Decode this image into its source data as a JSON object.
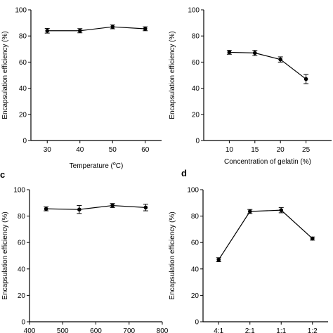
{
  "chart_data": [
    {
      "type": "line",
      "panel_label": "",
      "title": "",
      "xlabel": "Temperature (",
      "xlabel_unit": "C)",
      "xlabel_sup": "o",
      "ylabel": "Encapsulation efficiency (%)",
      "xlim": [
        25,
        65
      ],
      "ylim": [
        0,
        100
      ],
      "xticks": [
        30,
        40,
        50,
        60
      ],
      "yticks": [
        0,
        20,
        40,
        60,
        80,
        100
      ],
      "x": [
        30,
        40,
        50,
        60
      ],
      "series": [
        {
          "values": [
            84.0,
            84.0,
            87.0,
            85.5
          ],
          "errors": [
            1.8,
            1.6,
            1.5,
            1.5
          ]
        }
      ]
    },
    {
      "type": "line",
      "panel_label": "",
      "title": "",
      "xlabel": "Concentration of gelatin (%)",
      "ylabel": "Encapsulation efficiency (%)",
      "xlim": [
        5,
        30
      ],
      "ylim": [
        0,
        100
      ],
      "xticks": [
        10,
        15,
        20,
        25
      ],
      "yticks": [
        0,
        20,
        40,
        60,
        80,
        100
      ],
      "x": [
        10,
        15,
        20,
        25
      ],
      "series": [
        {
          "values": [
            67.5,
            67.0,
            62.0,
            47.0
          ],
          "errors": [
            1.5,
            2.0,
            2.0,
            3.5
          ]
        }
      ]
    },
    {
      "type": "line",
      "panel_label": "c",
      "title": "",
      "xlabel": "",
      "ylabel": "Encapsulation efficiency (%)",
      "xlim": [
        400,
        800
      ],
      "ylim": [
        0,
        100
      ],
      "xticks": [
        400,
        500,
        600,
        700,
        800
      ],
      "yticks": [
        0,
        20,
        40,
        60,
        80,
        100
      ],
      "x": [
        450,
        550,
        650,
        750
      ],
      "series": [
        {
          "values": [
            85.5,
            85.0,
            88.0,
            86.5
          ],
          "errors": [
            1.5,
            3.0,
            1.5,
            2.5
          ]
        }
      ]
    },
    {
      "type": "line",
      "panel_label": "d",
      "title": "",
      "xlabel": "",
      "ylabel": "Encapsulation efficiency (%)",
      "ylim": [
        0,
        100
      ],
      "categories": [
        "4:1",
        "2:1",
        "1:1",
        "1:2"
      ],
      "yticks": [
        0,
        20,
        40,
        60,
        80,
        100
      ],
      "series": [
        {
          "values": [
            47.0,
            83.5,
            84.5,
            63.0
          ],
          "errors": [
            1.5,
            1.5,
            2.0,
            1.2
          ]
        }
      ]
    }
  ]
}
